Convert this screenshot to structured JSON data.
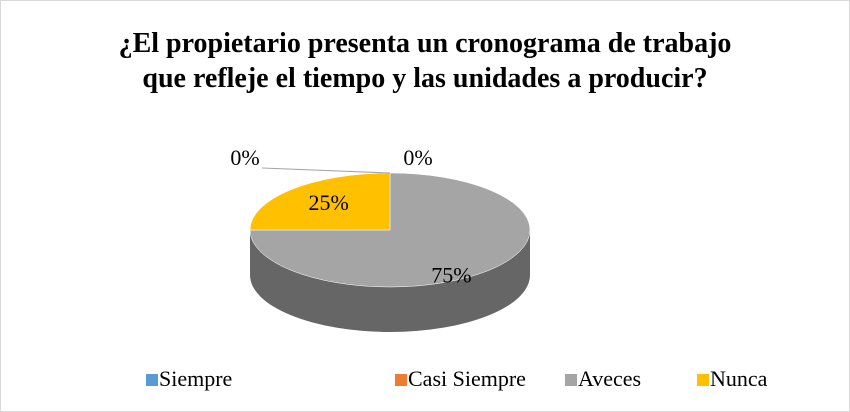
{
  "chart_data": {
    "type": "pie",
    "title": "¿El propietario presenta un cronograma de trabajo que refleje el tiempo y las unidades a producir?",
    "categories": [
      "Siempre",
      "Casi Siempre",
      "Aveces",
      "Nunca"
    ],
    "values": [
      0,
      0,
      75,
      25
    ],
    "value_labels": [
      "0%",
      "0%",
      "75%",
      "25%"
    ],
    "colors": [
      "#5b9bd5",
      "#ed7d31",
      "#a5a5a5",
      "#ffc000"
    ],
    "legend": "bottom"
  }
}
